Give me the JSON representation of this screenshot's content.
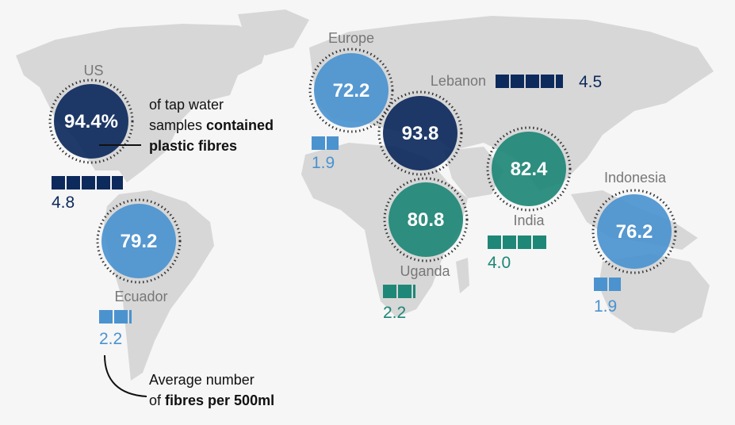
{
  "chart_data": {
    "type": "bubble-map",
    "regions": [
      {
        "id": "us",
        "name": "US",
        "percent": "94.4%",
        "fibres": "4.8",
        "fibres_value": 4.8,
        "color": "#0d2a5c"
      },
      {
        "id": "europe",
        "name": "Europe",
        "percent": "72.2",
        "fibres": "1.9",
        "fibres_value": 1.9,
        "color": "#4b93cf"
      },
      {
        "id": "lebanon",
        "name": "Lebanon",
        "percent": "93.8",
        "fibres": "4.5",
        "fibres_value": 4.5,
        "color": "#0d2a5c"
      },
      {
        "id": "india",
        "name": "India",
        "percent": "82.4",
        "fibres": "4.0",
        "fibres_value": 4.0,
        "color": "#1e8777"
      },
      {
        "id": "uganda",
        "name": "Uganda",
        "percent": "80.8",
        "fibres": "2.2",
        "fibres_value": 2.2,
        "color": "#1e8777"
      },
      {
        "id": "ecuador",
        "name": "Ecuador",
        "percent": "79.2",
        "fibres": "2.2",
        "fibres_value": 2.2,
        "color": "#4b93cf"
      },
      {
        "id": "indonesia",
        "name": "Indonesia",
        "percent": "76.2",
        "fibres": "1.9",
        "fibres_value": 1.9,
        "color": "#4b93cf"
      }
    ]
  },
  "annotations": {
    "percent_note": {
      "line1": "of tap water",
      "line2_plain": "samples ",
      "line2_bold": "contained",
      "line3_bold": "plastic fibres"
    },
    "fibres_note": {
      "line1": "Average number",
      "line2_plain": "of ",
      "line2_bold": "fibres per 500ml"
    }
  },
  "colors": {
    "dark_blue": "#0d2a5c",
    "light_blue": "#4b93cf",
    "teal": "#1e8777",
    "region_label": "#777777",
    "land": "#d7d7d7",
    "background": "#f6f6f6"
  }
}
